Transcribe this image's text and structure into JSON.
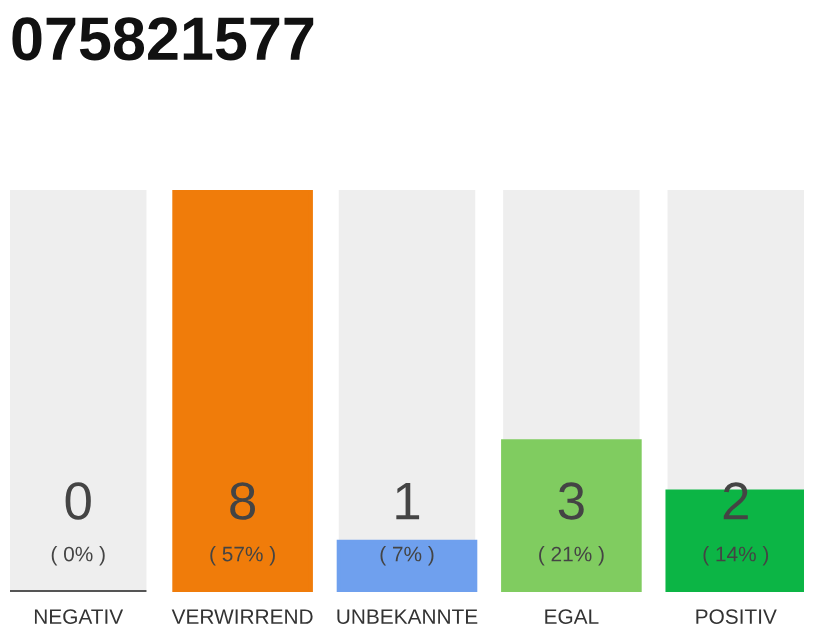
{
  "chart_data": {
    "type": "bar",
    "title": "075821577",
    "categories": [
      "NEGATIV",
      "VERWIRREND",
      "UNBEKANNTE",
      "EGAL",
      "POSITIV"
    ],
    "values": [
      0,
      8,
      1,
      3,
      2
    ],
    "colors": [
      "#555555",
      "#f07c0a",
      "#6fa0ee",
      "#80cc60",
      "#0cb545"
    ],
    "ylim": [
      0,
      8
    ],
    "data_labels": true,
    "annotations": [
      "( 0% )",
      "( 57% )",
      "( 7% )",
      "( 21% )",
      "( 14% )"
    ],
    "tick_labels": "x",
    "grid": false,
    "legend": false
  }
}
